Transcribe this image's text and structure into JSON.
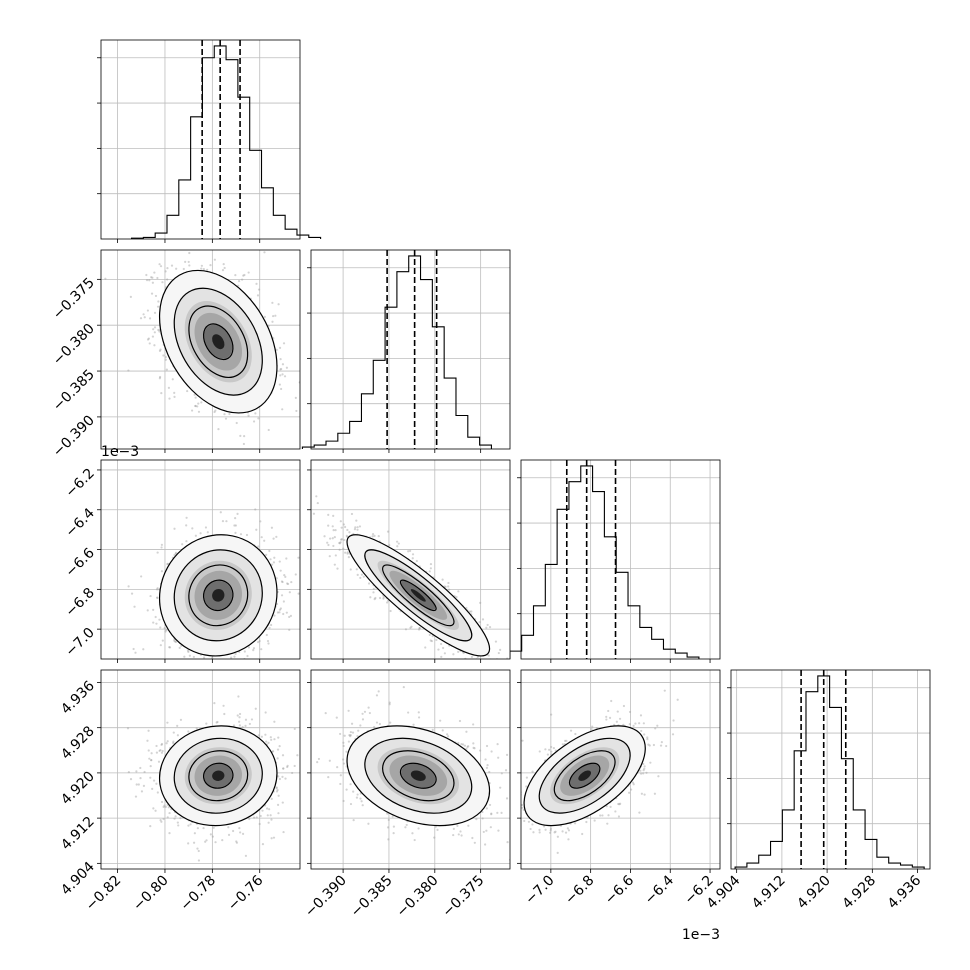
{
  "chart_data": {
    "type": "corner",
    "title": "",
    "parameters": [
      {
        "range": [
          -0.827,
          -0.743
        ],
        "ticks": [
          -0.82,
          -0.8,
          -0.78,
          -0.76
        ],
        "tick_labels": [
          "−0.82",
          "−0.80",
          "−0.78",
          "−0.76"
        ],
        "quantiles": [
          -0.7843,
          -0.7767,
          -0.7683
        ],
        "hist": [
          0.004,
          0.008,
          0.03,
          0.12,
          0.3,
          0.62,
          0.92,
          0.98,
          0.91,
          0.72,
          0.45,
          0.26,
          0.12,
          0.05,
          0.02,
          0.008
        ]
      },
      {
        "range": [
          -0.3935,
          -0.3718
        ],
        "ticks": [
          -0.39,
          -0.385,
          -0.38,
          -0.375
        ],
        "tick_labels": [
          "−0.390",
          "−0.385",
          "−0.380",
          "−0.375"
        ],
        "quantiles": [
          -0.3852,
          -0.3822,
          -0.3798
        ],
        "hist": [
          0.01,
          0.02,
          0.04,
          0.08,
          0.14,
          0.28,
          0.45,
          0.72,
          0.9,
          0.98,
          0.86,
          0.62,
          0.36,
          0.17,
          0.06,
          0.02
        ]
      },
      {
        "range": [
          -7.15,
          -6.15
        ],
        "ticks": [
          -7.0,
          -6.8,
          -6.6,
          -6.4,
          -6.2
        ],
        "tick_labels": [
          "−7.0",
          "−6.8",
          "−6.6",
          "−6.4",
          "−6.2"
        ],
        "multiplier": "1e−3",
        "quantiles": [
          -6.92,
          -6.82,
          -6.675
        ],
        "hist": [
          0.04,
          0.12,
          0.27,
          0.48,
          0.76,
          0.9,
          0.98,
          0.85,
          0.62,
          0.44,
          0.27,
          0.16,
          0.1,
          0.05,
          0.03,
          0.01
        ]
      },
      {
        "range": [
          4.903,
          4.9382
        ],
        "ticks": [
          4.904,
          4.912,
          4.92,
          4.928,
          4.936
        ],
        "tick_labels": [
          "4.904",
          "4.912",
          "4.920",
          "4.928",
          "4.936"
        ],
        "quantiles": [
          4.9154,
          4.9194,
          4.9233
        ],
        "hist": [
          0.01,
          0.03,
          0.07,
          0.14,
          0.3,
          0.6,
          0.9,
          0.98,
          0.82,
          0.56,
          0.3,
          0.15,
          0.06,
          0.03,
          0.02,
          0.01
        ]
      }
    ],
    "pairs": [
      {
        "row": 1,
        "col": 0,
        "mean": [
          -0.7775,
          -0.3818
        ],
        "sd": [
          0.0118,
          0.0037
        ],
        "rho": -0.35
      },
      {
        "row": 2,
        "col": 0,
        "mean": [
          -0.7775,
          -6.83
        ],
        "sd": [
          0.0118,
          0.145
        ],
        "rho": 0.05
      },
      {
        "row": 2,
        "col": 1,
        "mean": [
          -0.3818,
          -6.83
        ],
        "sd": [
          0.0037,
          0.145
        ],
        "rho": -0.88
      },
      {
        "row": 3,
        "col": 0,
        "mean": [
          -0.7775,
          4.9195
        ],
        "sd": [
          0.0118,
          0.0042
        ],
        "rho": 0.05
      },
      {
        "row": 3,
        "col": 1,
        "mean": [
          -0.3818,
          4.9195
        ],
        "sd": [
          0.0037,
          0.0042
        ],
        "rho": -0.3
      },
      {
        "row": 3,
        "col": 2,
        "mean": [
          -6.83,
          4.9195
        ],
        "sd": [
          0.145,
          0.0042
        ],
        "rho": 0.55
      }
    ],
    "grid": true,
    "contour_levels_sigma": [
      0.5,
      1.0,
      1.5,
      2.0
    ]
  }
}
